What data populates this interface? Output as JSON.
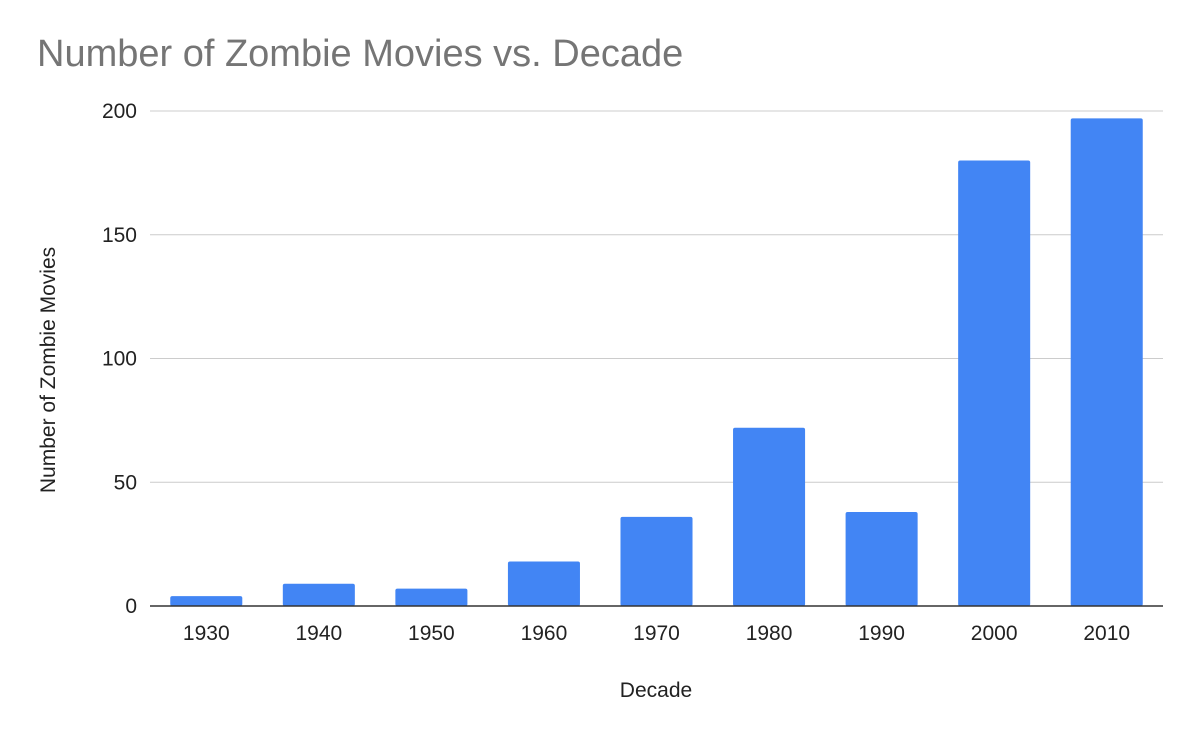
{
  "chart_data": {
    "type": "bar",
    "title": "Number of Zombie Movies vs. Decade",
    "xlabel": "Decade",
    "ylabel": "Number of Zombie Movies",
    "categories": [
      "1930",
      "1940",
      "1950",
      "1960",
      "1970",
      "1980",
      "1990",
      "2000",
      "2010"
    ],
    "values": [
      4,
      9,
      7,
      18,
      36,
      72,
      38,
      180,
      197
    ],
    "ylim": [
      0,
      200
    ],
    "yticks": [
      "0",
      "50",
      "100",
      "150",
      "200"
    ],
    "ytick_values": [
      0,
      50,
      100,
      150,
      200
    ],
    "grid": true,
    "legend": "none",
    "bar_color": "#4285f4"
  }
}
